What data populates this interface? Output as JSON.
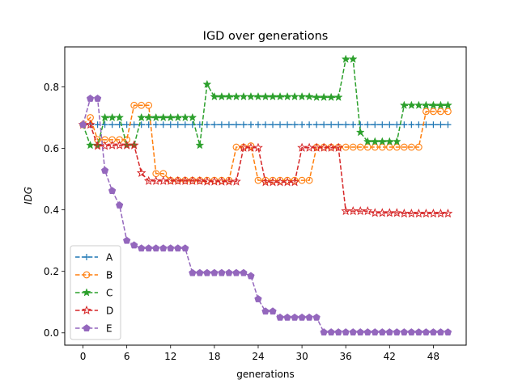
{
  "chart_data": {
    "type": "line",
    "title": "IGD over generations",
    "xlabel": "generations",
    "ylabel": "IDG",
    "xlim": [
      -2.5,
      52.5
    ],
    "ylim": [
      -0.04,
      0.93
    ],
    "xticks": [
      0,
      6,
      12,
      18,
      24,
      30,
      36,
      42,
      48
    ],
    "yticks": [
      0.0,
      0.2,
      0.4,
      0.6,
      0.8
    ],
    "legend_position": "lower-left",
    "grid": false,
    "x": [
      0,
      1,
      2,
      3,
      4,
      5,
      6,
      7,
      8,
      9,
      10,
      11,
      12,
      13,
      14,
      15,
      16,
      17,
      18,
      19,
      20,
      21,
      22,
      23,
      24,
      25,
      26,
      27,
      28,
      29,
      30,
      31,
      32,
      33,
      34,
      35,
      36,
      37,
      38,
      39,
      40,
      41,
      42,
      43,
      44,
      45,
      46,
      47,
      48,
      49,
      50
    ],
    "series": [
      {
        "name": "A",
        "color": "#1f77b4",
        "marker": "plus",
        "values": [
          0.677,
          0.677,
          0.677,
          0.677,
          0.677,
          0.677,
          0.677,
          0.677,
          0.677,
          0.677,
          0.677,
          0.677,
          0.677,
          0.677,
          0.677,
          0.677,
          0.677,
          0.677,
          0.677,
          0.677,
          0.677,
          0.677,
          0.677,
          0.677,
          0.677,
          0.677,
          0.677,
          0.677,
          0.677,
          0.677,
          0.677,
          0.677,
          0.677,
          0.677,
          0.677,
          0.677,
          0.677,
          0.677,
          0.677,
          0.677,
          0.677,
          0.677,
          0.677,
          0.677,
          0.677,
          0.677,
          0.677,
          0.677,
          0.677,
          0.677,
          0.677
        ]
      },
      {
        "name": "B",
        "color": "#ff7f0e",
        "marker": "circle",
        "values": [
          0.677,
          0.7,
          0.628,
          0.628,
          0.628,
          0.628,
          0.628,
          0.74,
          0.74,
          0.74,
          0.518,
          0.518,
          0.496,
          0.496,
          0.496,
          0.496,
          0.496,
          0.496,
          0.496,
          0.496,
          0.496,
          0.604,
          0.604,
          0.608,
          0.496,
          0.496,
          0.496,
          0.496,
          0.496,
          0.496,
          0.496,
          0.496,
          0.604,
          0.604,
          0.604,
          0.604,
          0.604,
          0.604,
          0.604,
          0.604,
          0.604,
          0.604,
          0.604,
          0.604,
          0.604,
          0.604,
          0.604,
          0.72,
          0.72,
          0.72,
          0.72
        ]
      },
      {
        "name": "C",
        "color": "#2ca02c",
        "marker": "star",
        "values": [
          0.677,
          0.61,
          0.61,
          0.7,
          0.7,
          0.7,
          0.61,
          0.61,
          0.7,
          0.7,
          0.7,
          0.7,
          0.7,
          0.7,
          0.7,
          0.7,
          0.61,
          0.808,
          0.768,
          0.768,
          0.768,
          0.768,
          0.768,
          0.768,
          0.768,
          0.768,
          0.768,
          0.768,
          0.768,
          0.768,
          0.768,
          0.768,
          0.766,
          0.766,
          0.766,
          0.766,
          0.89,
          0.89,
          0.652,
          0.622,
          0.622,
          0.622,
          0.622,
          0.622,
          0.74,
          0.74,
          0.74,
          0.74,
          0.74,
          0.74,
          0.74
        ]
      },
      {
        "name": "D",
        "color": "#d62728",
        "marker": "star-open",
        "values": [
          0.677,
          0.677,
          0.608,
          0.608,
          0.61,
          0.61,
          0.61,
          0.61,
          0.52,
          0.494,
          0.494,
          0.494,
          0.494,
          0.494,
          0.494,
          0.494,
          0.494,
          0.492,
          0.492,
          0.492,
          0.492,
          0.492,
          0.602,
          0.602,
          0.602,
          0.49,
          0.49,
          0.49,
          0.49,
          0.49,
          0.602,
          0.602,
          0.602,
          0.602,
          0.602,
          0.602,
          0.396,
          0.396,
          0.396,
          0.396,
          0.39,
          0.39,
          0.39,
          0.39,
          0.388,
          0.388,
          0.388,
          0.388,
          0.388,
          0.388,
          0.388
        ]
      },
      {
        "name": "E",
        "color": "#9467bd",
        "marker": "pentagon",
        "values": [
          0.677,
          0.762,
          0.762,
          0.528,
          0.462,
          0.415,
          0.3,
          0.285,
          0.275,
          0.275,
          0.275,
          0.275,
          0.275,
          0.275,
          0.275,
          0.195,
          0.195,
          0.195,
          0.195,
          0.195,
          0.195,
          0.195,
          0.195,
          0.185,
          0.11,
          0.07,
          0.07,
          0.05,
          0.05,
          0.05,
          0.05,
          0.05,
          0.05,
          0.002,
          0.002,
          0.002,
          0.002,
          0.002,
          0.002,
          0.002,
          0.002,
          0.002,
          0.002,
          0.002,
          0.002,
          0.002,
          0.002,
          0.002,
          0.002,
          0.002,
          0.002
        ]
      }
    ]
  }
}
